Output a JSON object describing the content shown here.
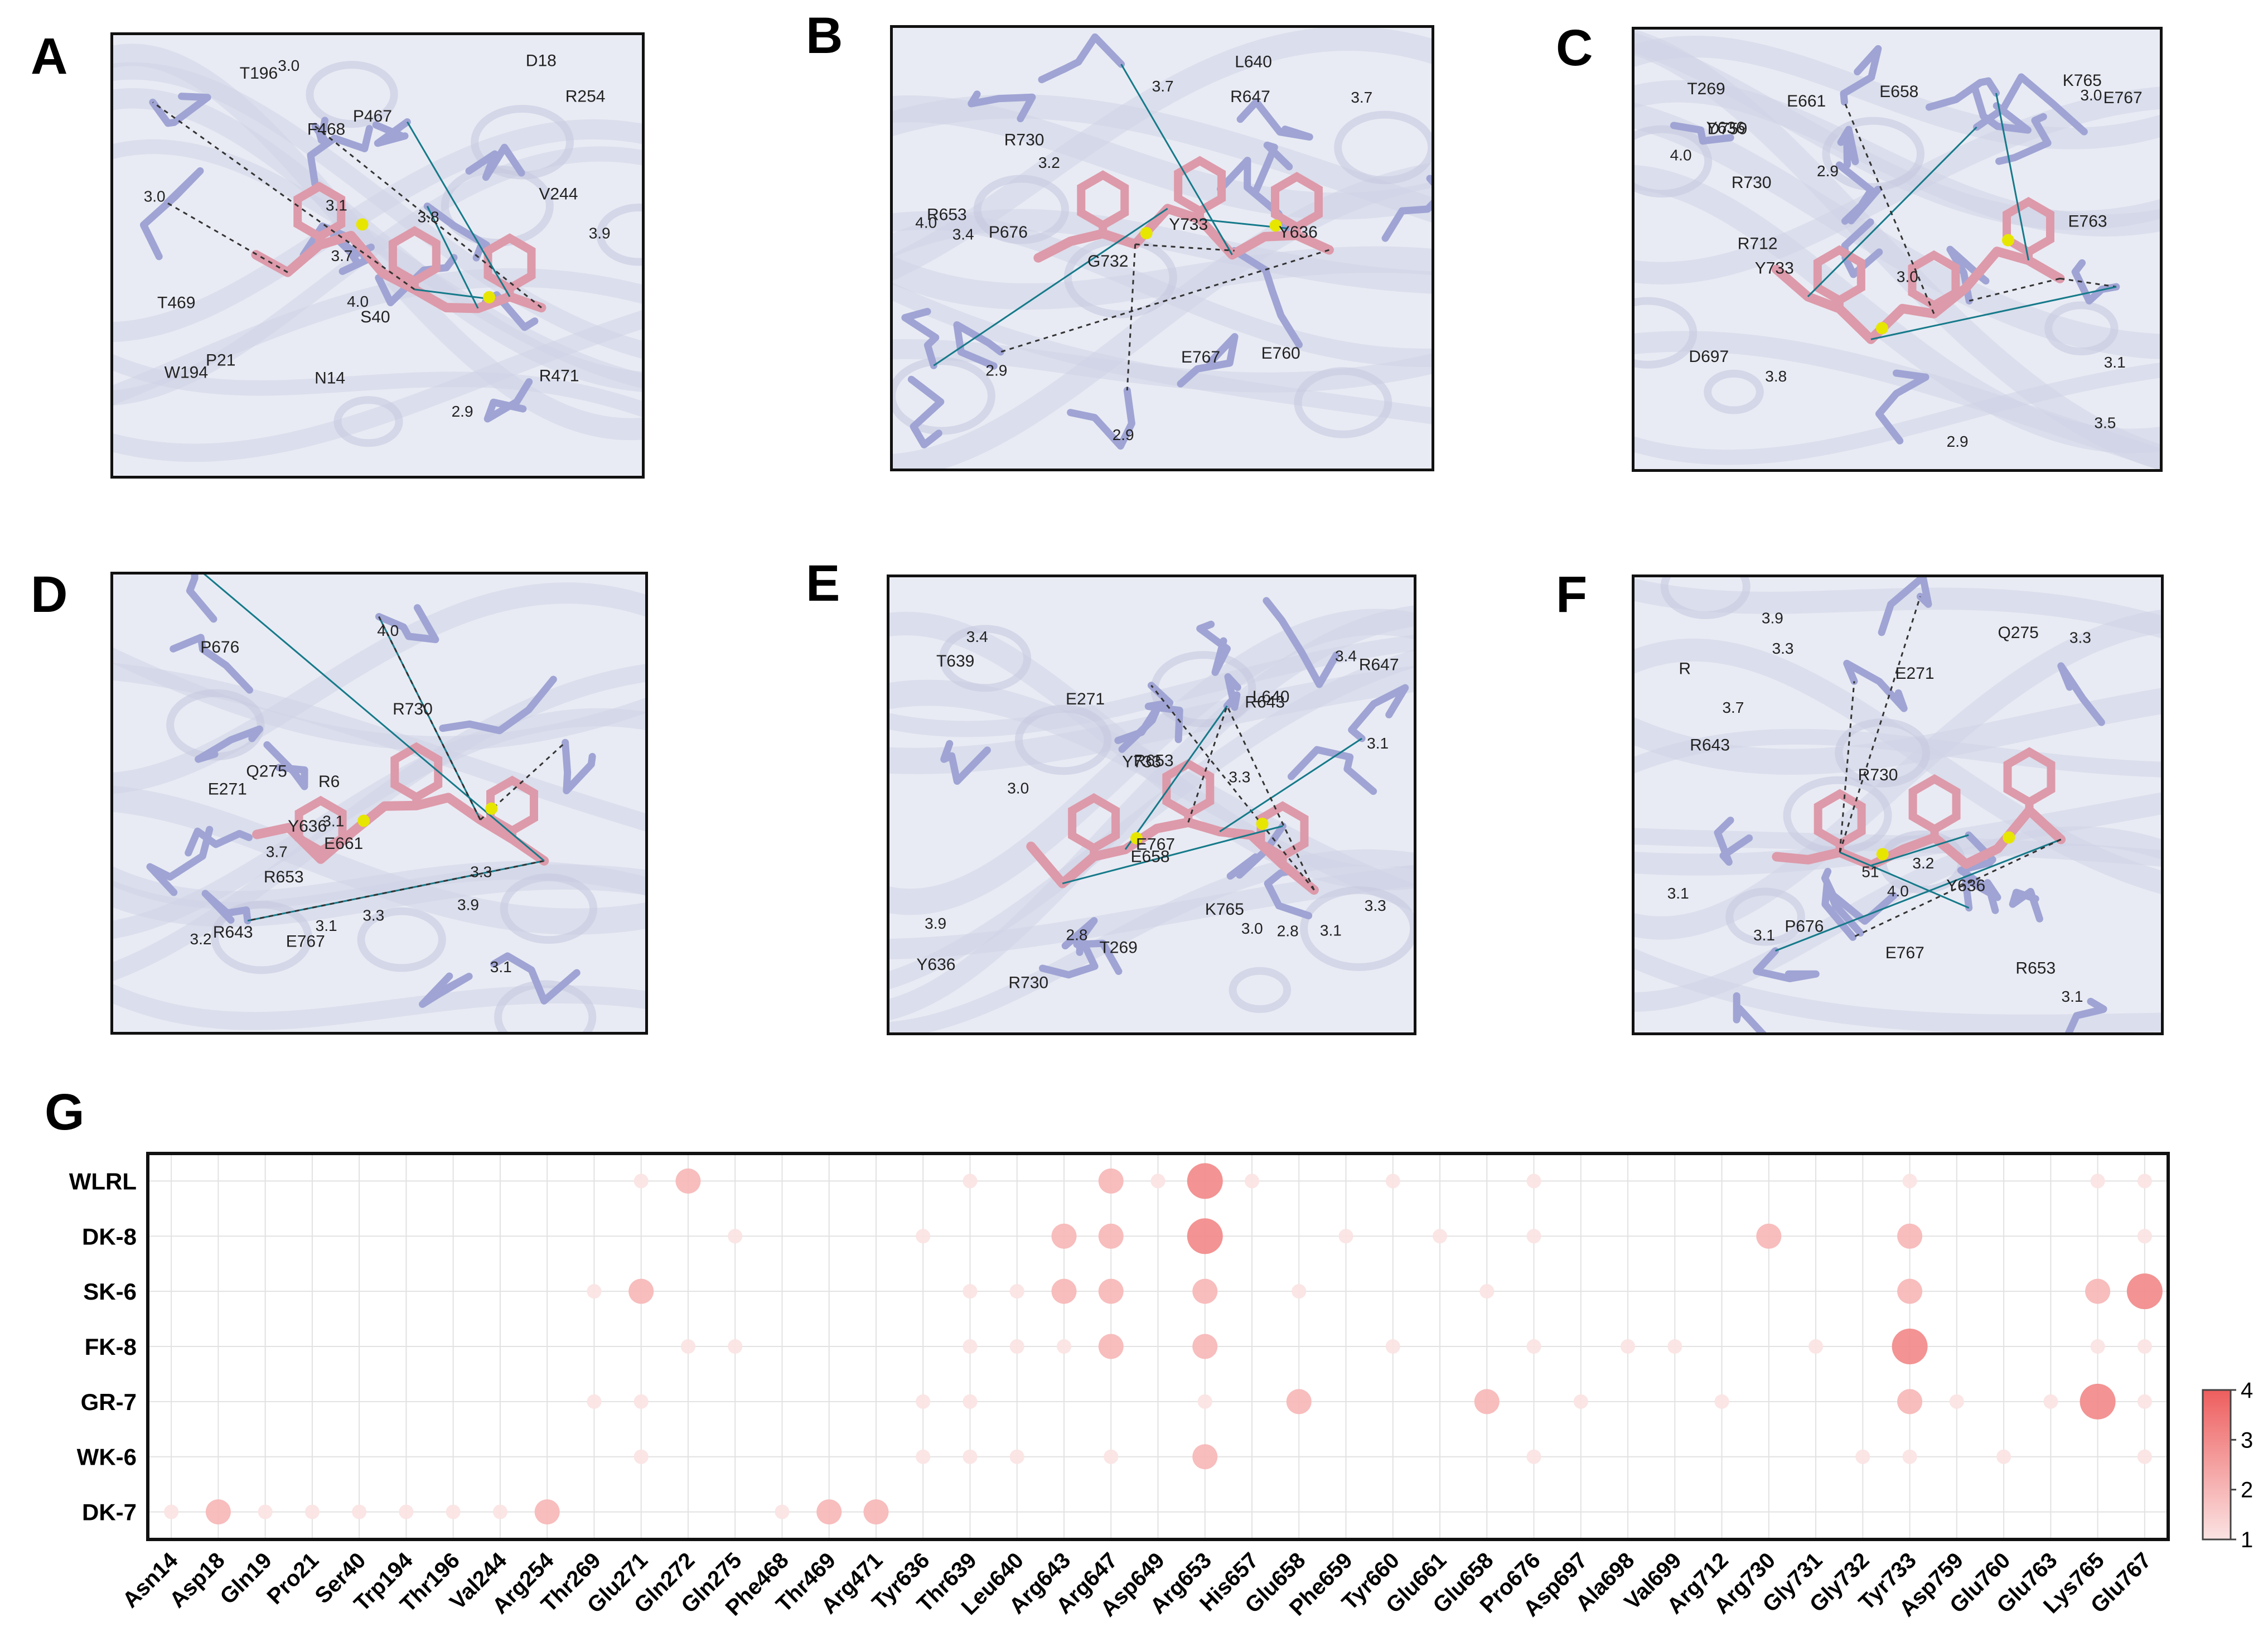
{
  "panels": [
    {
      "letter": "A",
      "labels": [
        "V244",
        "W194",
        "T196",
        "R254",
        "S40",
        "N14",
        "3.7",
        "4.0",
        "R471",
        "2.9",
        "3.0",
        "3.0",
        "T469",
        "F468",
        "P21",
        "D18",
        "3.9",
        "3.8",
        "3.1",
        "P467"
      ]
    },
    {
      "letter": "B",
      "labels": [
        "R653",
        "2.9",
        "R647",
        "4.0",
        "2.9",
        "P676",
        "R730",
        "L640",
        "3.4",
        "3.7",
        "3.2",
        "Y636",
        "Y733",
        "3.7",
        "E767",
        "G732",
        "E760"
      ]
    },
    {
      "letter": "C",
      "labels": [
        "R712",
        "3.8",
        "D759",
        "D697",
        "2.9",
        "3.0",
        "3.5",
        "E763",
        "E661",
        "R730",
        "Y733",
        "3.0",
        "4.0",
        "2.9",
        "3.1",
        "K765",
        "E658",
        "E767",
        "T269",
        "Y636"
      ]
    },
    {
      "letter": "D",
      "labels": [
        "Y636",
        "E767",
        "R730",
        "P676",
        "3.7",
        "3.9",
        "3.3",
        "3.2",
        "3.3",
        "3.1",
        "R643",
        "R653",
        "4.0",
        "3.1",
        "3.1",
        "E661",
        "Q275",
        "E271",
        "R6"
      ]
    },
    {
      "letter": "E",
      "labels": [
        "E658",
        "T269",
        "3.1",
        "3.0",
        "R730",
        "Y733",
        "R653",
        "E271",
        "3.3",
        "K765",
        "3.4",
        "3.9",
        "Y636",
        "3.1",
        "2.8",
        "3.4",
        "3.3",
        "2.8",
        "3.0",
        "L640",
        "R647",
        "R643",
        "E767",
        "T639"
      ]
    },
    {
      "letter": "F",
      "labels": [
        "Y636",
        "E767",
        "R730",
        "P676",
        "3.7",
        "3.9",
        "3.3",
        "3.2",
        "3.3",
        "3.1",
        "R643",
        "R653",
        "4.0",
        "3.1",
        "3.1",
        "51",
        "Q275",
        "E271",
        "R"
      ]
    }
  ],
  "chart_data": {
    "letter": "G",
    "type": "bubble-matrix",
    "rows": [
      "WLRL",
      "DK-8",
      "SK-6",
      "FK-8",
      "GR-7",
      "WK-6",
      "DK-7"
    ],
    "columns": [
      "Asn14",
      "Asp18",
      "Gln19",
      "Pro21",
      "Ser40",
      "Trp194",
      "Thr196",
      "Val244",
      "Arg254",
      "Thr269",
      "Glu271",
      "Gln272",
      "Gln275",
      "Phe468",
      "Thr469",
      "Arg471",
      "Tyr636",
      "Thr639",
      "Leu640",
      "Arg643",
      "Arg647",
      "Asp649",
      "Arg653",
      "His657",
      "Glu658",
      "Phe659",
      "Tyr660",
      "Glu661",
      "Glu658",
      "Pro676",
      "Asp697",
      "Ala698",
      "Val699",
      "Arg712",
      "Arg730",
      "Gly731",
      "Gly732",
      "Tyr733",
      "Asp759",
      "Glu760",
      "Glu763",
      "Lys765",
      "Glu767"
    ],
    "values": {
      "WLRL": {
        "Glu271": 1,
        "Gln272": 2,
        "Thr639": 1,
        "Arg647": 2,
        "Asp649": 1,
        "Arg653": 3,
        "His657": 1,
        "Tyr660": 1,
        "Pro676": 1,
        "Tyr733": 1,
        "Lys765": 1,
        "Glu767": 1
      },
      "DK-8": {
        "Gln275": 1,
        "Tyr636": 1,
        "Arg643": 2,
        "Arg647": 2,
        "Arg653": 3,
        "Phe659": 1,
        "Glu661": 1,
        "Pro676": 1,
        "Arg730": 2,
        "Tyr733": 2,
        "Glu767": 1
      },
      "SK-6": {
        "Thr269": 1,
        "Glu271": 2,
        "Glu658": 1,
        "Thr639": 1,
        "Leu640": 1,
        "Arg643": 2,
        "Arg647": 2,
        "Arg653": 2,
        "Tyr733": 2,
        "Lys765": 2,
        "Glu767": 3
      },
      "FK-8": {
        "Gln272": 1,
        "Gln275": 1,
        "Thr639": 1,
        "Leu640": 1,
        "Arg643": 1,
        "Arg647": 2,
        "Arg653": 2,
        "Tyr660": 1,
        "Pro676": 1,
        "Ala698": 1,
        "Val699": 1,
        "Gly731": 1,
        "Tyr733": 3,
        "Lys765": 1,
        "Glu767": 1
      },
      "GR-7": {
        "Thr269": 1,
        "Glu271": 1,
        "Tyr636": 1,
        "Thr639": 1,
        "Arg653": 1,
        "Glu658": 2,
        "Asp697": 1,
        "Arg712": 1,
        "Tyr733": 2,
        "Asp759": 1,
        "Glu763": 1,
        "Lys765": 3,
        "Glu767": 1
      },
      "WK-6": {
        "Glu271": 1,
        "Tyr636": 1,
        "Thr639": 1,
        "Leu640": 1,
        "Arg647": 1,
        "Arg653": 2,
        "Pro676": 1,
        "Gly732": 1,
        "Tyr733": 1,
        "Glu760": 1,
        "Glu767": 1
      },
      "DK-7": {
        "Asn14": 1,
        "Asp18": 2,
        "Gln19": 1,
        "Pro21": 1,
        "Ser40": 1,
        "Trp194": 1,
        "Thr196": 1,
        "Val244": 1,
        "Arg254": 2,
        "Phe468": 1,
        "Thr469": 2,
        "Arg471": 2
      }
    },
    "colorbar": {
      "min": 1,
      "max": 4,
      "ticks": [
        "1",
        "2",
        "3",
        "4"
      ],
      "low_color": "#fbe3e3",
      "high_color": "#ee5e5e"
    }
  },
  "colors": {
    "ligand": "#dd9aaa",
    "residue": "#9fa4d4",
    "hbond": "#157a8a",
    "polar": "#333333",
    "sulfur": "#e6e600",
    "cartoon": "#cfd3e6"
  }
}
